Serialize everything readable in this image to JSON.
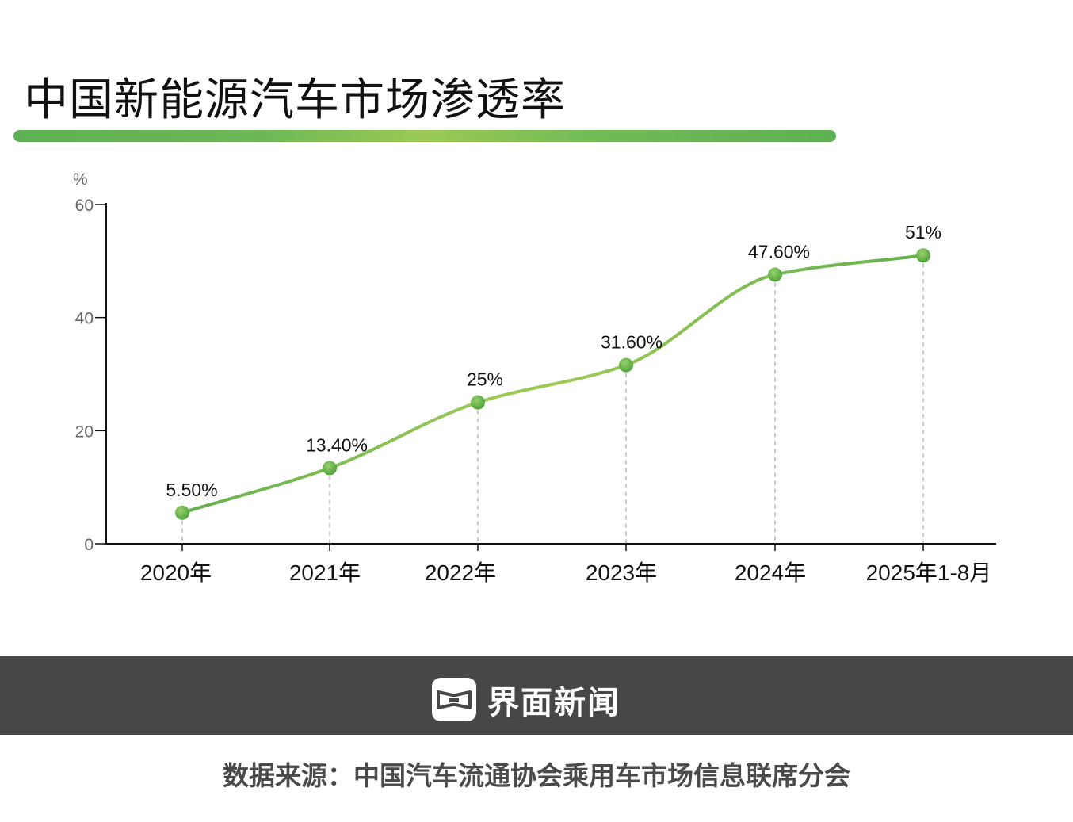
{
  "title": "中国新能源汽车市场渗透率",
  "colors": {
    "line": "#63b04f",
    "line_mid": "#9cc954",
    "marker": "#6dbb4e",
    "axis": "#111111",
    "guide": "#b8b8b8",
    "tick_text": "#666666",
    "footer_bg": "#474747"
  },
  "chart_data": {
    "type": "line",
    "title": "中国新能源汽车市场渗透率",
    "ylabel": "%",
    "xlabel": "",
    "ylim": [
      0,
      60
    ],
    "yticks": [
      "0",
      "20",
      "40",
      "60"
    ],
    "ytick_values": [
      0,
      20,
      40,
      60
    ],
    "categories": [
      "2020年",
      "2021年",
      "2022年",
      "2023年",
      "2024年",
      "2025年1-8月"
    ],
    "values": [
      5.5,
      13.4,
      25,
      31.6,
      47.6,
      51
    ],
    "data_labels": [
      "5.50%",
      "13.40%",
      "25%",
      "31.60%",
      "47.60%",
      "51%"
    ],
    "smooth": true,
    "grid": false
  },
  "footer": {
    "logo_icon": "jiemian-logo-icon",
    "brand_name": "界面新闻",
    "source": "数据来源：中国汽车流通协会乘用车市场信息联席分会"
  }
}
